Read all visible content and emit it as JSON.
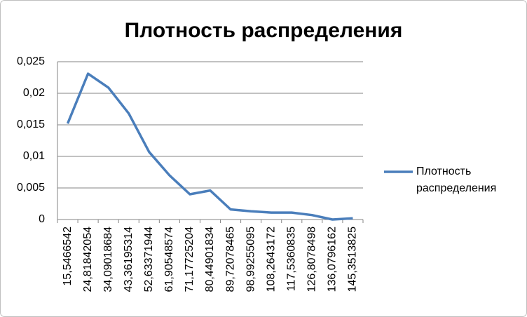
{
  "chart_data": {
    "type": "line",
    "title": "Плотность распределения",
    "categories": [
      "15,5466542",
      "24,81842054",
      "34,09018684",
      "43,36195314",
      "52,63371944",
      "61,90548574",
      "71,17725204",
      "80,44901834",
      "89,72078465",
      "98,99255095",
      "108,2643172",
      "117,5360835",
      "126,8078498",
      "136,0796162",
      "145,3513825"
    ],
    "series": [
      {
        "name": "Плотность распределения",
        "color": "#4a7ebb",
        "values": [
          0.0152,
          0.0231,
          0.0209,
          0.0168,
          0.0107,
          0.007,
          0.004,
          0.0046,
          0.0016,
          0.0013,
          0.0011,
          0.0011,
          0.0007,
          0.0,
          0.0002
        ]
      }
    ],
    "ylim": [
      0,
      0.025
    ],
    "yticks": [
      0,
      {
        "value": 0.005,
        "label": "0,005"
      },
      {
        "value": 0.01,
        "label": "0,01"
      },
      {
        "value": 0.015,
        "label": "0,015"
      },
      {
        "value": 0.02,
        "label": "0,02"
      },
      {
        "value": 0.025,
        "label": "0,025"
      }
    ],
    "grid": true,
    "legend": "right"
  }
}
